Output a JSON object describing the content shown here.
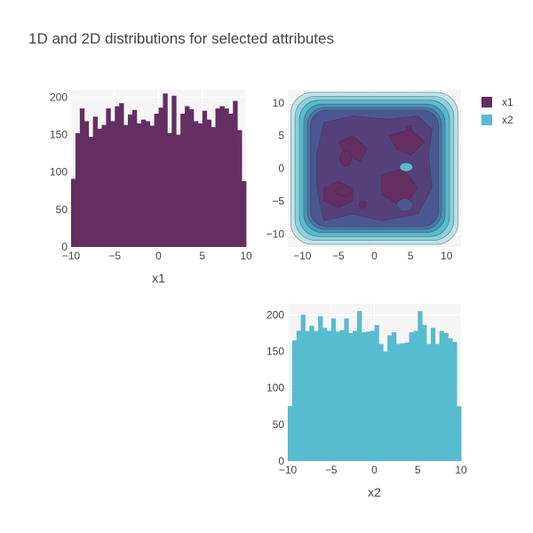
{
  "title": "1D and 2D distributions for selected attributes",
  "legend": {
    "items": [
      {
        "name": "x1",
        "color": "#632e61"
      },
      {
        "name": "x2",
        "color": "#57bcd0"
      }
    ]
  },
  "chart_data": [
    {
      "type": "bar",
      "subtype": "histogram",
      "xlabel": "x1",
      "ylabel": "",
      "xlim": [
        -10,
        10
      ],
      "ylim": [
        0,
        210
      ],
      "xticks": [
        -10,
        -5,
        0,
        5,
        10
      ],
      "yticks": [
        0,
        50,
        100,
        150,
        200
      ],
      "bin_edges_start": -10,
      "bin_width": 0.5,
      "values": [
        91,
        152,
        185,
        168,
        147,
        174,
        158,
        163,
        185,
        168,
        188,
        192,
        163,
        177,
        183,
        165,
        170,
        168,
        162,
        178,
        186,
        205,
        152,
        202,
        150,
        178,
        188,
        184,
        168,
        165,
        182,
        170,
        160,
        185,
        188,
        185,
        178,
        195,
        156,
        88
      ],
      "color": "#632e61",
      "grid": true,
      "background": "#f5f5f5"
    },
    {
      "type": "contour",
      "series": "x1 vs x2 density",
      "xlim": [
        -12,
        12
      ],
      "ylim": [
        -12,
        12
      ],
      "xticks": [
        -10,
        -5,
        0,
        5,
        10
      ],
      "yticks": [
        -10,
        -5,
        0,
        5,
        10
      ],
      "levels": 10,
      "colorscale": [
        "#632e61",
        "#56407a",
        "#4b5790",
        "#4877a5",
        "#4994b8",
        "#57bcd0",
        "#8cd0dc",
        "#bde4ea"
      ],
      "grid": true,
      "background": "#f5f5f5"
    },
    {
      "type": "bar",
      "subtype": "histogram",
      "xlabel": "x2",
      "ylabel": "",
      "xlim": [
        -10,
        10
      ],
      "ylim": [
        0,
        215
      ],
      "xticks": [
        -10,
        -5,
        0,
        5,
        10
      ],
      "yticks": [
        0,
        50,
        100,
        150,
        200
      ],
      "bin_edges_start": -10,
      "bin_width": 0.5,
      "values": [
        75,
        165,
        178,
        200,
        178,
        185,
        178,
        198,
        182,
        178,
        195,
        177,
        179,
        195,
        175,
        178,
        205,
        176,
        177,
        178,
        186,
        160,
        150,
        172,
        176,
        160,
        161,
        162,
        176,
        178,
        205,
        186,
        160,
        182,
        160,
        178,
        175,
        168,
        163,
        75
      ],
      "color": "#57bcd0",
      "grid": true,
      "background": "#f5f5f5"
    }
  ]
}
